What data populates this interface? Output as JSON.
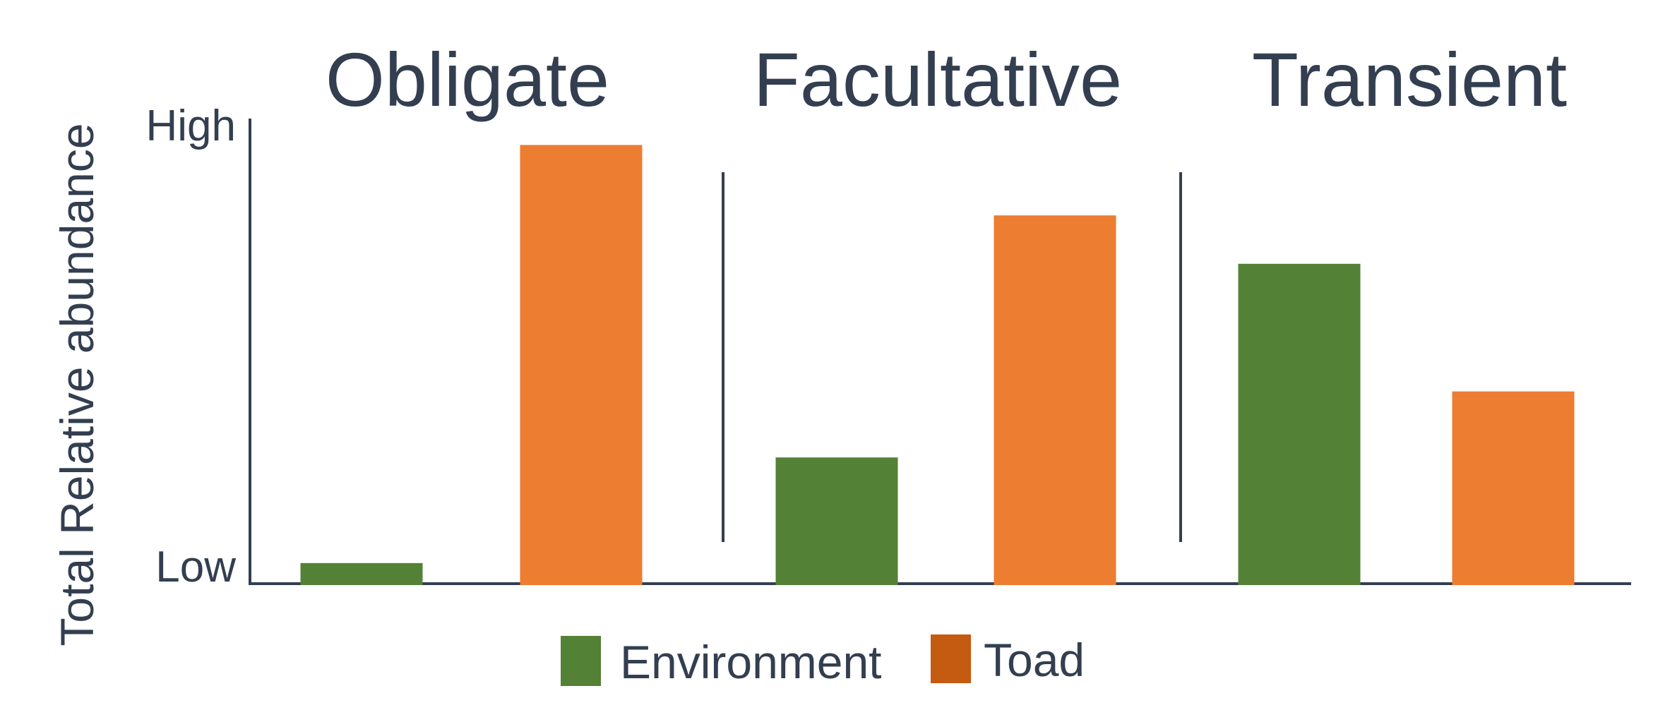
{
  "chart_data": {
    "type": "bar",
    "groups": [
      "Obligate",
      "Facultative",
      "Transient"
    ],
    "series": [
      {
        "name": "Environment",
        "color": "#538135",
        "values": [
          5,
          29,
          73
        ]
      },
      {
        "name": "Toad",
        "color": "#ed7d31",
        "values": [
          100,
          84,
          44
        ]
      }
    ],
    "ylabel": "Total Relative abundance",
    "y_ticks": {
      "low": "Low",
      "high": "High"
    },
    "ylim": [
      0,
      106
    ],
    "legend": [
      {
        "label": "Environment",
        "color": "#538135"
      },
      {
        "label": "Toad",
        "color": "#c55a11"
      }
    ],
    "legend_position": "bottom-center",
    "grid": false,
    "text_color": "#333f50"
  }
}
